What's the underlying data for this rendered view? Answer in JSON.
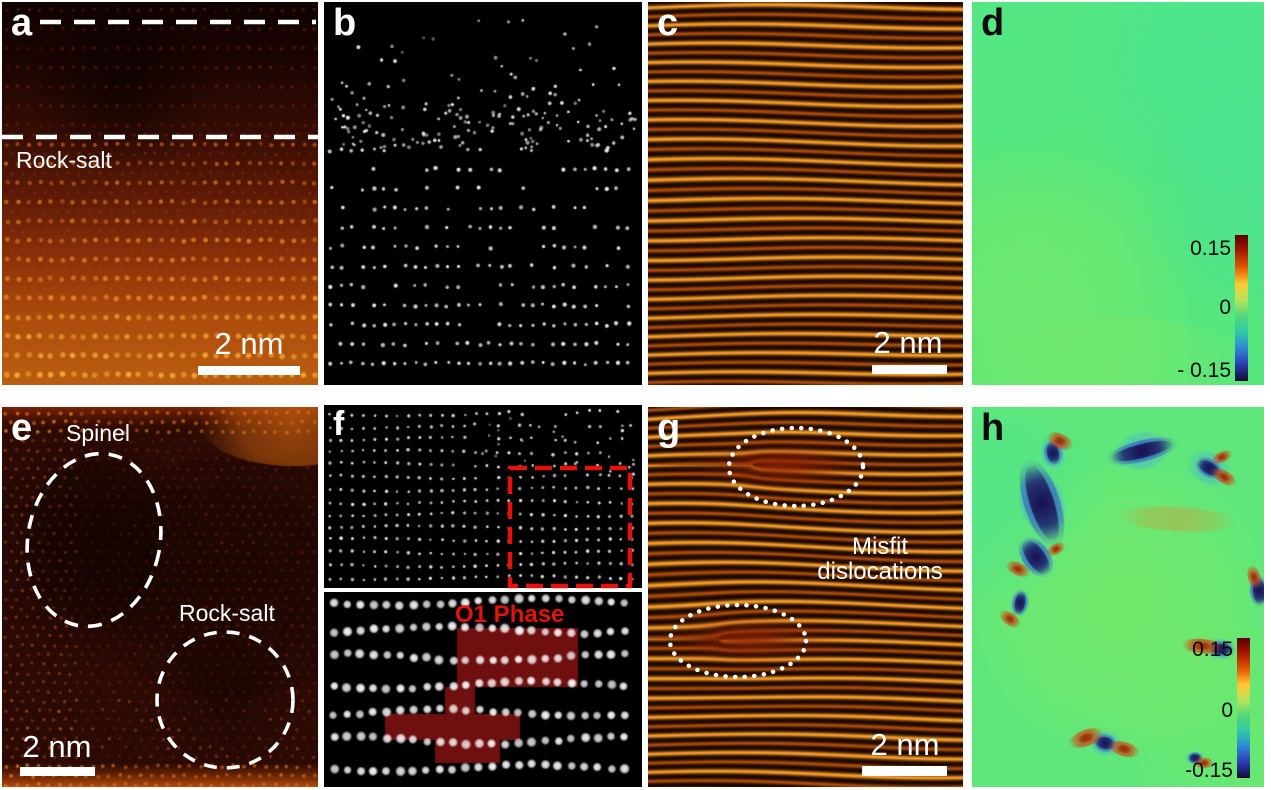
{
  "figure": {
    "background": "#ffffff",
    "type": "STEM-microscopy-multipanel"
  },
  "panels": {
    "a": {
      "label": "a",
      "region_label": "Rock-salt",
      "scale_bar": "2 nm"
    },
    "b": {
      "label": "b"
    },
    "c": {
      "label": "c",
      "scale_bar": "2 nm"
    },
    "d": {
      "label": "d",
      "colorbar": {
        "max": "0.15",
        "mid": "0",
        "min": "- 0.15"
      }
    },
    "e": {
      "label": "e",
      "region_label_top": "Spinel",
      "region_label_bottom": "Rock-salt",
      "scale_bar": "2 nm"
    },
    "f": {
      "label": "f",
      "phase_label": "O1 Phase"
    },
    "g": {
      "label": "g",
      "annotation_line1": "Misfit",
      "annotation_line2": "dislocations",
      "scale_bar": "2 nm"
    },
    "h": {
      "label": "h",
      "colorbar": {
        "max": "0.15",
        "mid": "0",
        "min": "-0.15"
      }
    }
  },
  "render": {
    "annotation_white": "#ffffff",
    "annotation_red": "#e3120b",
    "o1_overlay": "#801111",
    "haadf_bg": "#000000",
    "haadf_dot": "#ffffff",
    "stripe_dark": "#180600",
    "stripe_bright": "#ffb427",
    "stripe_dim": "#c86400",
    "lattice_top": "#0f0201",
    "lattice_bottom": "#bb5e10",
    "strain_green": "#57e77f",
    "colorbar_stops": [
      "#5a0000",
      "#a81800",
      "#e05a00",
      "#ffc832",
      "#b4e45a",
      "#52d878",
      "#30c8aa",
      "#2f86d2",
      "#2b3cb4",
      "#140a32"
    ]
  }
}
